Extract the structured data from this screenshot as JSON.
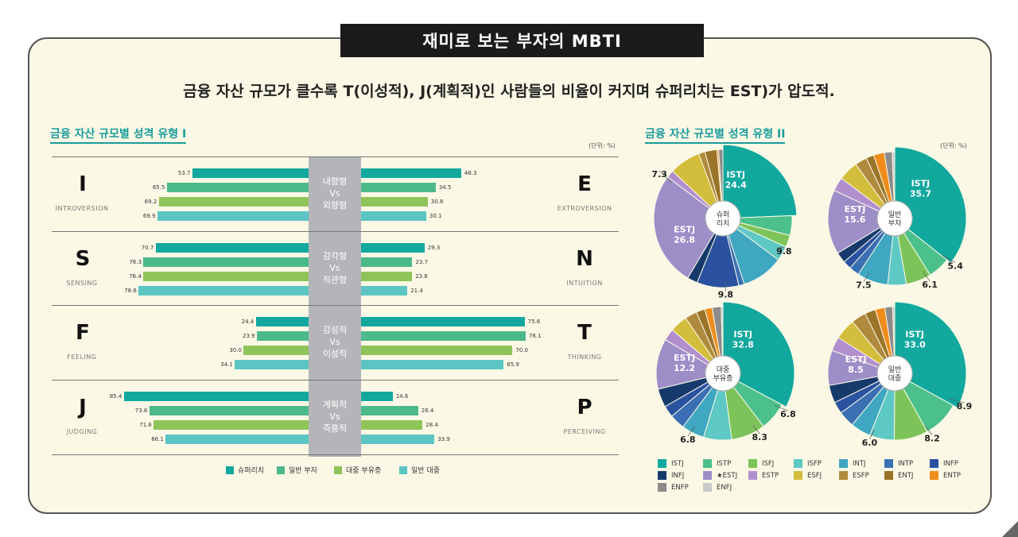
{
  "title": "재미로 보는 부자의 MBTI",
  "subtitle": "금융 자산 규모가 클수록 T(이성적), J(계획적)인 사람들의 비율이 커지며 슈퍼리치는 EST)가 압도적.",
  "chart1_title": "금융 자산 규모별 성격 유형 I",
  "chart2_title": "금융 자산 규모별 성격 유형 II",
  "unit": "(단위: %)",
  "colors": {
    "s1": "#12a89d",
    "s2": "#4cb98a",
    "s3": "#8fc45a",
    "s4": "#5bc5c4"
  },
  "chart_data": [
    {
      "type": "bar",
      "title": "금융 자산 규모별 성격 유형 I",
      "series": [
        {
          "name": "슈퍼리치"
        },
        {
          "name": "일반 부자"
        },
        {
          "name": "대중 부유층"
        },
        {
          "name": "일반 대중"
        }
      ],
      "pairs": [
        {
          "left_letter": "I",
          "left_word": "INTROVERSION",
          "right_letter": "E",
          "right_word": "EXTROVERSION",
          "vs": [
            "내향형",
            "Vs",
            "외향형"
          ],
          "left": [
            "53.7",
            "65.5",
            "69.2",
            "69.9"
          ],
          "right": [
            "46.3",
            "34.5",
            "30.8",
            "30.1"
          ]
        },
        {
          "left_letter": "S",
          "left_word": "SENSING",
          "right_letter": "N",
          "right_word": "INTUITION",
          "vs": [
            "감각형",
            "Vs",
            "직관형"
          ],
          "left": [
            "70.7",
            "76.3",
            "76.4",
            "78.6"
          ],
          "right": [
            "29.3",
            "23.7",
            "23.6",
            "21.4"
          ]
        },
        {
          "left_letter": "F",
          "left_word": "FEELING",
          "right_letter": "T",
          "right_word": "THINKING",
          "vs": [
            "감성적",
            "Vs",
            "이성적"
          ],
          "left": [
            "24.4",
            "23.9",
            "30.0",
            "34.1"
          ],
          "right": [
            "75.6",
            "76.1",
            "70.0",
            "65.9"
          ]
        },
        {
          "left_letter": "J",
          "left_word": "JUDGING",
          "right_letter": "P",
          "right_word": "PERCEIVING",
          "vs": [
            "계획적",
            "Vs",
            "즉흥적"
          ],
          "left": [
            "85.4",
            "73.6",
            "71.6",
            "66.1"
          ],
          "right": [
            "14.6",
            "26.4",
            "28.4",
            "33.9"
          ]
        }
      ]
    },
    {
      "type": "pie",
      "title": "금융 자산 규모별 성격 유형 II",
      "types": [
        "ISTJ",
        "ISTP",
        "ISFJ",
        "ISFP",
        "INTJ",
        "INTP",
        "INFP",
        "INFJ",
        "★ESTJ",
        "ESTP",
        "ESFJ",
        "ESFP",
        "ENTJ",
        "ENTP",
        "ENFP",
        "ENFJ"
      ],
      "type_colors": [
        "#12a89d",
        "#4cc08a",
        "#7cc45a",
        "#5ec8c4",
        "#3fa7c1",
        "#3a6fb4",
        "#2a52a0",
        "#173a6c",
        "#9d8ec8",
        "#b18fcf",
        "#d3bd3c",
        "#b08a3c",
        "#9a7428",
        "#ef8c1c",
        "#8c8c8c",
        "#c9c9c9"
      ],
      "pies": [
        {
          "name": "슈퍼리치",
          "center": [
            "슈퍼",
            "리치"
          ],
          "values": [
            24.4,
            4.6,
            2.8,
            3.5,
            9.8,
            1.3,
            9.8,
            2.4,
            26.8,
            1.8,
            7.3,
            1.5,
            2.8,
            0.4,
            1.0,
            0
          ],
          "labels": [
            {
              "text": "ISTJ",
              "inside": true
            },
            {
              "text": "24.4",
              "inside": true
            },
            {
              "text": "ESTJ",
              "inside": true
            },
            {
              "text": "26.8",
              "inside": true
            },
            {
              "text": "7.3"
            },
            {
              "text": "9.8"
            },
            {
              "text": "9.8"
            }
          ]
        },
        {
          "name": "일반 부자",
          "center": [
            "일반",
            "부자"
          ],
          "values": [
            35.7,
            5.4,
            6.1,
            4.5,
            7.5,
            2.5,
            2.0,
            2.6,
            15.6,
            3.4,
            4.8,
            2.9,
            1.9,
            2.6,
            1.9,
            0.6
          ],
          "labels": [
            {
              "text": "ISTJ",
              "inside": true
            },
            {
              "text": "35.7",
              "inside": true
            },
            {
              "text": "ESTJ",
              "inside": true
            },
            {
              "text": "15.6",
              "inside": true
            },
            {
              "text": "5.4"
            },
            {
              "text": "6.1"
            },
            {
              "text": "7.5"
            }
          ]
        },
        {
          "name": "대중 부유층",
          "center": [
            "대중",
            "부유층"
          ],
          "values": [
            32.8,
            6.8,
            8.3,
            6.8,
            5.5,
            3.7,
            2.8,
            4.5,
            12.2,
            2.9,
            4.3,
            2.9,
            2.1,
            1.8,
            2.2,
            0.4
          ],
          "labels": [
            {
              "text": "ISTJ",
              "inside": true
            },
            {
              "text": "32.8",
              "inside": true
            },
            {
              "text": "ESTJ",
              "inside": true
            },
            {
              "text": "12.2",
              "inside": true
            },
            {
              "text": "6.8"
            },
            {
              "text": "8.3"
            },
            {
              "text": "6.8"
            }
          ]
        },
        {
          "name": "일반 대중",
          "center": [
            "일반",
            "대중"
          ],
          "values": [
            33.0,
            8.9,
            8.2,
            6.0,
            4.9,
            3.9,
            2.9,
            4.3,
            8.5,
            3.4,
            5.1,
            3.6,
            2.6,
            2.3,
            1.9,
            0.5
          ],
          "labels": [
            {
              "text": "ISTJ",
              "inside": true
            },
            {
              "text": "33.0",
              "inside": true
            },
            {
              "text": "ESTJ",
              "inside": true
            },
            {
              "text": "8.5",
              "inside": true
            },
            {
              "text": "8.9"
            },
            {
              "text": "8.2"
            },
            {
              "text": "6.0"
            }
          ]
        }
      ]
    }
  ]
}
